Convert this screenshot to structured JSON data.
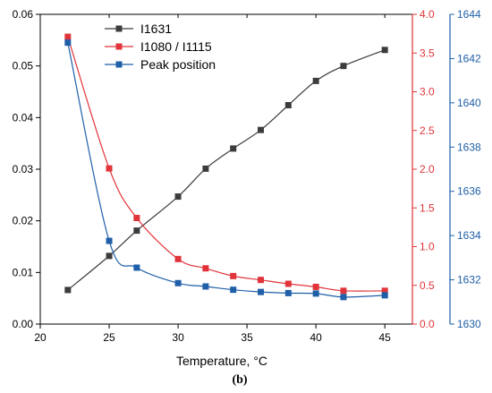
{
  "chart_data": {
    "type": "line",
    "xlabel": "Temperature, °C",
    "caption": "(b)",
    "xlim": [
      20,
      47
    ],
    "xticks": [
      20,
      25,
      30,
      35,
      40,
      45
    ],
    "axes": {
      "left": {
        "ylim": [
          0,
          0.06
        ],
        "ticks": [
          "0.00",
          "0.01",
          "0.02",
          "0.03",
          "0.04",
          "0.05",
          "0.06"
        ],
        "color": "#000000"
      },
      "right1": {
        "ylim": [
          0,
          4.0
        ],
        "ticks": [
          "0.0",
          "0.5",
          "1.0",
          "1.5",
          "2.0",
          "2.5",
          "3.0",
          "3.5",
          "4.0"
        ],
        "color": "#e0343a"
      },
      "right2": {
        "ylim": [
          1630,
          1644
        ],
        "ticks": [
          "1630",
          "1632",
          "1634",
          "1636",
          "1638",
          "1640",
          "1642",
          "1644"
        ],
        "color": "#1f5fa8"
      }
    },
    "legend_position": "top-left",
    "series": [
      {
        "name": "I1631",
        "axis": "left",
        "color": "#3c3c3c",
        "x": [
          22,
          25,
          27,
          30,
          32,
          34,
          36,
          38,
          40,
          42,
          45
        ],
        "y": [
          0.0066,
          0.0132,
          0.0181,
          0.0247,
          0.0301,
          0.034,
          0.0376,
          0.0424,
          0.0471,
          0.05,
          0.0531
        ]
      },
      {
        "name": "I1080 / I1115",
        "axis": "right1",
        "color": "#e0343a",
        "x": [
          22,
          25,
          27,
          30,
          32,
          34,
          36,
          38,
          40,
          42,
          45
        ],
        "y": [
          3.71,
          2.01,
          1.37,
          0.84,
          0.72,
          0.62,
          0.57,
          0.52,
          0.48,
          0.43,
          0.43
        ]
      },
      {
        "name": "Peak position",
        "axis": "right2",
        "color": "#1f5fa8",
        "x": [
          22,
          25,
          27,
          30,
          32,
          34,
          36,
          38,
          40,
          42,
          45
        ],
        "y": [
          1642.72,
          1633.76,
          1632.55,
          1631.85,
          1631.7,
          1631.55,
          1631.45,
          1631.4,
          1631.38,
          1631.22,
          1631.3
        ]
      }
    ]
  }
}
